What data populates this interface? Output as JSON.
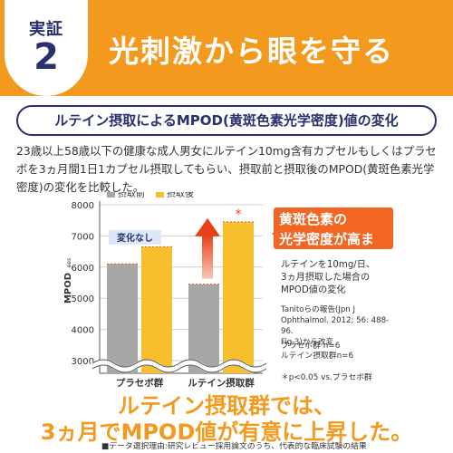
{
  "header": {
    "badge_top": "実証",
    "badge_number": "2",
    "title": "光刺激から眼を守る"
  },
  "subtitle": "ルテイン摂取によるMPOD(黄斑色素光学密度)値の変化",
  "description": "23歳以上58歳以下の健康な成人男女にルテイン10mg含有カプセルもしくはプラセボを3ヵ月間1日1カプセル摂取してもらい、摂取前と摂取後のMPOD(黄斑色素光学密度)の変化を比較した。",
  "chart_data": {
    "type": "bar",
    "categories": [
      "プラセボ群",
      "ルテイン摂取群"
    ],
    "series": [
      {
        "name": "摂取前",
        "values": [
          6100,
          5450
        ]
      },
      {
        "name": "摂取後",
        "values": [
          6650,
          7450
        ]
      }
    ],
    "ylabel": "MPOD",
    "ylabel_sub": "ees",
    "yticks": [
      "3000",
      "4000",
      "5000",
      "6000",
      "7000",
      "8000"
    ],
    "ylim": [
      3000,
      8000
    ],
    "axis_break": true,
    "legend_position": "top",
    "annotations": {
      "no_change": "変化なし",
      "significance_mark": "*"
    },
    "colors": {
      "before": "#a7a7a7",
      "after": "#f7be2e",
      "arrow": "#e8411a"
    }
  },
  "callout": {
    "line1": "黄斑色素の",
    "line2": "光学密度が高まる!"
  },
  "side_notes": {
    "main": [
      "ルテインを10mg/日、",
      "3ヵ月摂取した場合の",
      "MPOD値の変化"
    ],
    "citation": [
      "Tanitoらの報告(Jpn J",
      "Ophthalmol. 2012; 56: 488-96.",
      "Fig.3)から改変"
    ],
    "n_counts": [
      "プラセボ群 n=6",
      "ルテイン摂取群n=6"
    ],
    "p_value": "＊p<0.05 vs.プラセボ群"
  },
  "conclusion": {
    "line1": "ルテイン摂取群では、",
    "line2": "3ヵ月でMPOD値が有意に上昇した。"
  },
  "footnote": "■データ選択理由:研究レビュー採用論文のうち、代表的な臨床試験の結果",
  "colors": {
    "banner": "#f39a1e",
    "navy": "#2a2f6e",
    "callout": "#f26522"
  }
}
